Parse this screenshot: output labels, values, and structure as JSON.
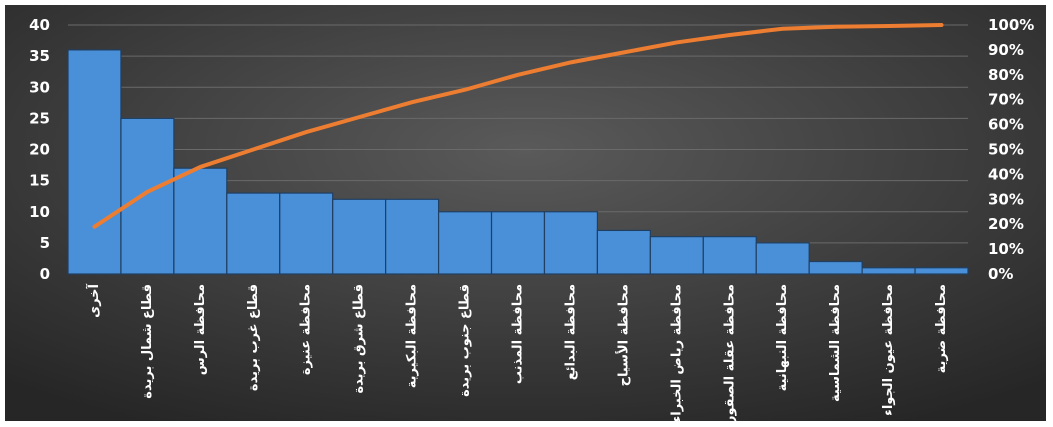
{
  "chart_data": {
    "type": "bar",
    "title": "",
    "xlabel": "",
    "ylabel": "",
    "ylim": [
      0,
      40
    ],
    "y2lim": [
      0,
      100
    ],
    "y_ticks": [
      "0",
      "5",
      "10",
      "15",
      "20",
      "25",
      "30",
      "35",
      "40"
    ],
    "y2_ticks": [
      "0%",
      "10%",
      "20%",
      "30%",
      "40%",
      "50%",
      "60%",
      "70%",
      "80%",
      "90%",
      "100%"
    ],
    "categories": [
      "آخرى",
      "قطاع شمال بريدة",
      "محافظة الرس",
      "قطاع غرب بريدة",
      "محافظة عنيزة",
      "قطاع شرق بريدة",
      "محافظة البكيرية",
      "قطاع جنوب بريدة",
      "محافظة المذنب",
      "محافظة البدائع",
      "محافظة الأسياح",
      "محافظة رياض الخبراء",
      "محافظة عقلة الصقور",
      "محافظة النبهانية",
      "محافظة الشماسية",
      "محافظة عيون الجواء",
      "محافظة ضرية"
    ],
    "series": [
      {
        "type": "bar",
        "axis": "left",
        "values": [
          36,
          25,
          17,
          13,
          13,
          12,
          12,
          10,
          10,
          10,
          7,
          6,
          6,
          5,
          2,
          1,
          1
        ],
        "color": "#4a90d9"
      },
      {
        "type": "line",
        "axis": "right",
        "values": [
          19,
          33,
          43,
          50,
          57,
          63,
          69,
          74,
          80,
          85,
          89,
          93,
          96,
          98.5,
          99.3,
          99.6,
          100
        ],
        "color": "#ed7d31"
      }
    ],
    "grid": true,
    "background": "#3a3a3a"
  }
}
